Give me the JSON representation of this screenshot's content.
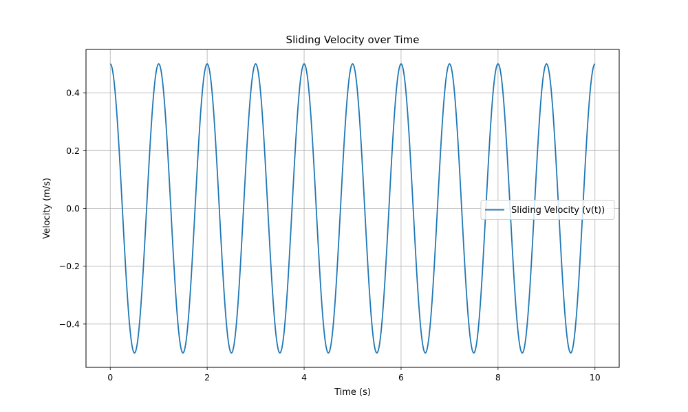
{
  "chart_data": {
    "type": "line",
    "title": "Sliding Velocity over Time",
    "xlabel": "Time (s)",
    "ylabel": "Velocity (m/s)",
    "xlim": [
      -0.5,
      10.5
    ],
    "ylim": [
      -0.55,
      0.55
    ],
    "x_ticks": [
      0,
      2,
      4,
      6,
      8,
      10
    ],
    "x_tick_labels": [
      "0",
      "2",
      "4",
      "6",
      "8",
      "10"
    ],
    "y_ticks": [
      -0.4,
      -0.2,
      0.0,
      0.2,
      0.4
    ],
    "y_tick_labels": [
      "−0.4",
      "−0.2",
      "0.0",
      "0.2",
      "0.4"
    ],
    "grid": true,
    "legend_position": "center-right",
    "series": [
      {
        "name": "Sliding Velocity (v(t))",
        "color": "#1f77b4",
        "function": "0.5*cos(2*pi*1*t)",
        "amplitude": 0.5,
        "frequency_hz": 1,
        "t_range": [
          0,
          10
        ],
        "samples": 1001
      }
    ]
  }
}
